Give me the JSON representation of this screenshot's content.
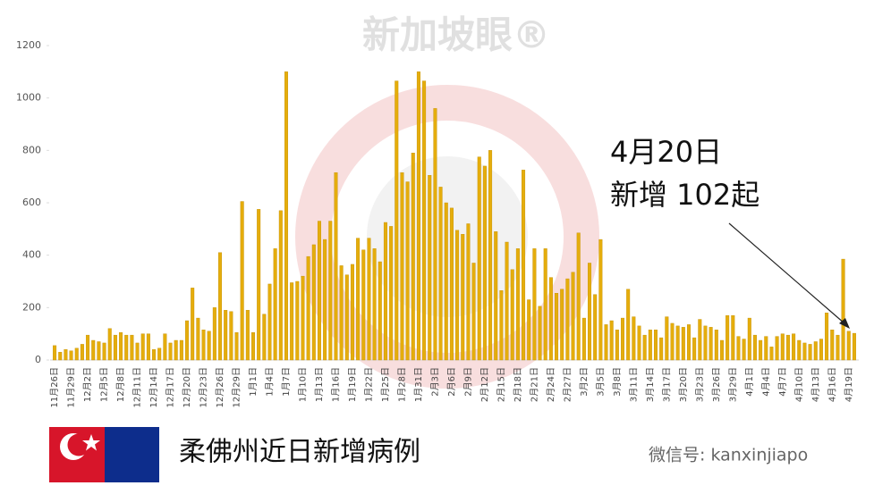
{
  "chart_data": {
    "type": "bar",
    "title": "柔佛州近日新增病例",
    "annotation": [
      "4月20日",
      "新增 102起"
    ],
    "watermark": "新加坡眼®",
    "source": "微信号: kanxinjiapo",
    "color": "#e5ad0c",
    "ylim": [
      0,
      1200
    ],
    "yticks": [
      0,
      200,
      400,
      600,
      800,
      1000,
      1200
    ],
    "categories": [
      "11月26日",
      null,
      null,
      "11月29日",
      null,
      null,
      "12月2日",
      null,
      null,
      "12月5日",
      null,
      null,
      "12月8日",
      null,
      null,
      "12月11日",
      null,
      null,
      "12月14日",
      null,
      null,
      "12月17日",
      null,
      null,
      "12月20日",
      null,
      null,
      "12月23日",
      null,
      null,
      "12月26日",
      null,
      null,
      "12月29日",
      null,
      null,
      "1月1日",
      null,
      null,
      "1月4日",
      null,
      null,
      "1月7日",
      null,
      null,
      "1月10日",
      null,
      null,
      "1月13日",
      null,
      null,
      "1月16日",
      null,
      null,
      "1月19日",
      null,
      null,
      "1月22日",
      null,
      null,
      "1月25日",
      null,
      null,
      "1月28日",
      null,
      null,
      "1月31日",
      null,
      null,
      "2月3日",
      null,
      null,
      "2月6日",
      null,
      null,
      "2月9日",
      null,
      null,
      "2月12日",
      null,
      null,
      "2月15日",
      null,
      null,
      "2月18日",
      null,
      null,
      "2月21日",
      null,
      null,
      "2月24日",
      null,
      null,
      "2月27日",
      null,
      null,
      "3月2日",
      null,
      null,
      "3月5日",
      null,
      null,
      "3月8日",
      null,
      null,
      "3月11日",
      null,
      null,
      "3月14日",
      null,
      null,
      "3月17日",
      null,
      null,
      "3月20日",
      null,
      null,
      "3月23日",
      null,
      null,
      "3月26日",
      null,
      null,
      "3月29日",
      null,
      null,
      "4月1日",
      null,
      null,
      "4月4日",
      null,
      null,
      "4月7日",
      null,
      null,
      "4月10日",
      null,
      null,
      "4月13日",
      null,
      null,
      "4月16日",
      null,
      null,
      "4月19日",
      null
    ],
    "values": [
      55,
      30,
      40,
      35,
      45,
      60,
      95,
      75,
      70,
      65,
      120,
      95,
      105,
      95,
      95,
      65,
      100,
      100,
      40,
      45,
      100,
      65,
      75,
      75,
      150,
      275,
      160,
      115,
      110,
      200,
      410,
      190,
      185,
      105,
      605,
      190,
      105,
      575,
      175,
      290,
      425,
      570,
      1100,
      295,
      300,
      320,
      395,
      440,
      530,
      460,
      530,
      715,
      360,
      325,
      365,
      465,
      420,
      465,
      425,
      375,
      525,
      510,
      1065,
      715,
      680,
      790,
      1100,
      1065,
      705,
      960,
      660,
      600,
      580,
      495,
      480,
      520,
      370,
      775,
      740,
      800,
      490,
      265,
      450,
      345,
      425,
      725,
      230,
      425,
      205,
      425,
      315,
      255,
      270,
      310,
      335,
      485,
      160,
      370,
      250,
      460,
      135,
      150,
      115,
      160,
      270,
      165,
      130,
      95,
      115,
      115,
      85,
      165,
      140,
      130,
      125,
      135,
      85,
      155,
      130,
      125,
      115,
      75,
      170,
      170,
      90,
      80,
      160,
      95,
      75,
      90,
      50,
      90,
      100,
      95,
      100,
      75,
      65,
      60,
      70,
      80,
      180,
      115,
      95,
      385,
      110,
      102
    ]
  }
}
